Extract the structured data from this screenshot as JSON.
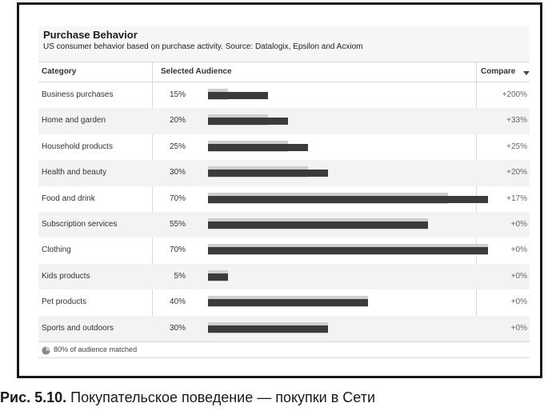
{
  "panel": {
    "title": "Purchase Behavior",
    "subtitle": "US consumer behavior based on purchase activity. Source: Datalogix, Epsilon and Acxiom"
  },
  "table": {
    "headers": {
      "category": "Category",
      "selected_audience": "Selected Audience",
      "compare": "Compare"
    },
    "rows": [
      {
        "category": "Business purchases",
        "selected_pct": "15%",
        "selected_value": 15,
        "baseline_value": 5,
        "compare": "+200%"
      },
      {
        "category": "Home and garden",
        "selected_pct": "20%",
        "selected_value": 20,
        "baseline_value": 15,
        "compare": "+33%"
      },
      {
        "category": "Household products",
        "selected_pct": "25%",
        "selected_value": 25,
        "baseline_value": 20,
        "compare": "+25%"
      },
      {
        "category": "Health and beauty",
        "selected_pct": "30%",
        "selected_value": 30,
        "baseline_value": 25,
        "compare": "+20%"
      },
      {
        "category": "Food and drink",
        "selected_pct": "70%",
        "selected_value": 70,
        "baseline_value": 60,
        "compare": "+17%"
      },
      {
        "category": "Subscription services",
        "selected_pct": "55%",
        "selected_value": 55,
        "baseline_value": 55,
        "compare": "+0%"
      },
      {
        "category": "Clothing",
        "selected_pct": "70%",
        "selected_value": 70,
        "baseline_value": 70,
        "compare": "+0%"
      },
      {
        "category": "Kids products",
        "selected_pct": "5%",
        "selected_value": 5,
        "baseline_value": 5,
        "compare": "+0%"
      },
      {
        "category": "Pet products",
        "selected_pct": "40%",
        "selected_value": 40,
        "baseline_value": 40,
        "compare": "+0%"
      },
      {
        "category": "Sports and outdoors",
        "selected_pct": "30%",
        "selected_value": 30,
        "baseline_value": 30,
        "compare": "+0%"
      }
    ]
  },
  "footer": {
    "matched_text": "80% of audience matched"
  },
  "caption": {
    "label": "Рис. 5.10.",
    "text": "Покупательское поведение — покупки в Сети"
  },
  "colors": {
    "bar_selected": "#3b3b3b",
    "bar_baseline": "#cfcfcf"
  }
}
